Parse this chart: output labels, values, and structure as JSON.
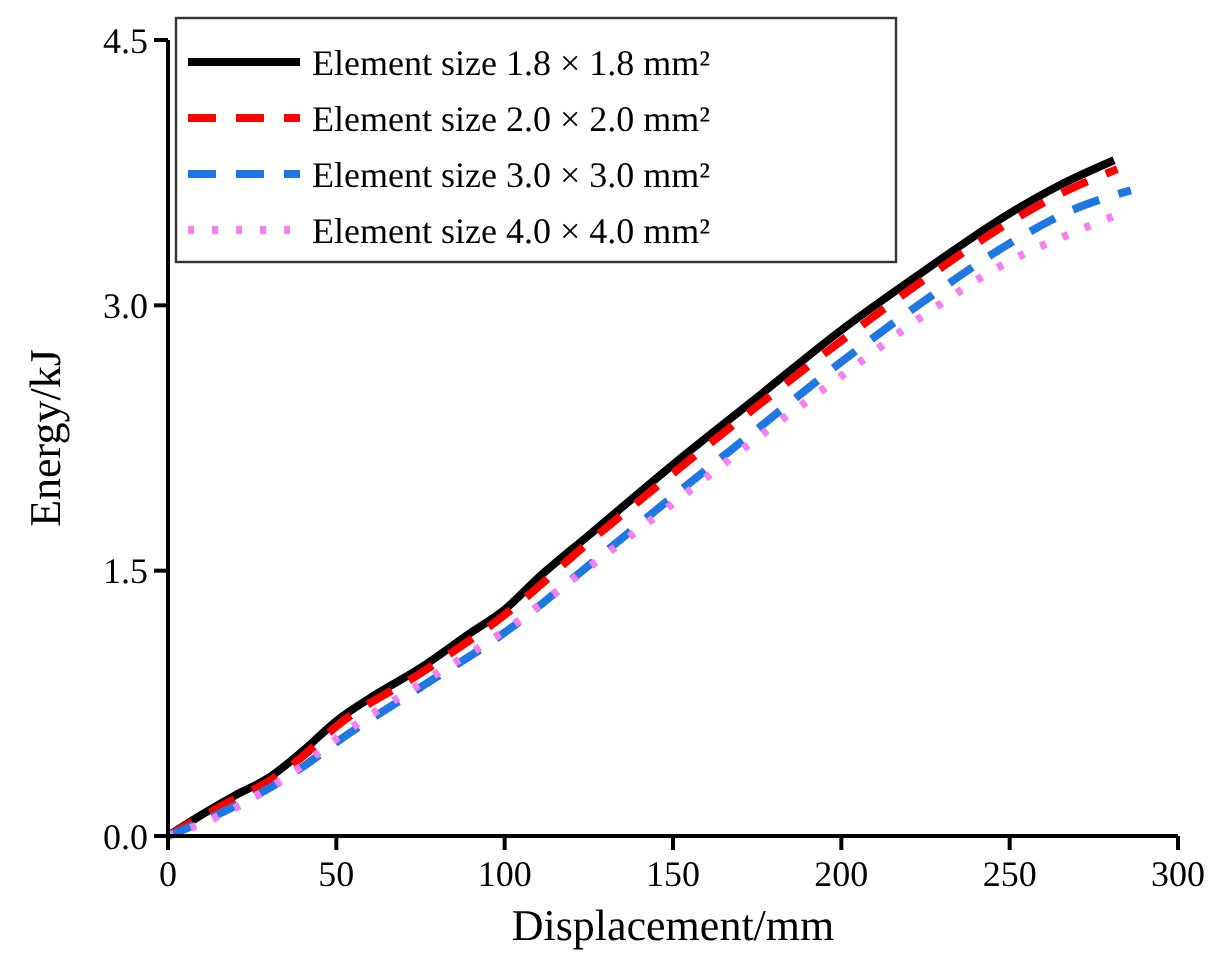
{
  "chart_data": {
    "type": "line",
    "xlabel": "Displacement/mm",
    "ylabel": "Energy/kJ",
    "xlim": [
      0,
      300
    ],
    "xticks": [
      0,
      50,
      100,
      150,
      200,
      250,
      300
    ],
    "ylim": [
      0,
      4.5
    ],
    "yticks": [
      {
        "value": 0,
        "label": "0.0"
      },
      {
        "value": 1.5,
        "label": "1.5"
      },
      {
        "value": 3,
        "label": "3.0"
      },
      {
        "value": 4.5,
        "label": "4.5"
      }
    ],
    "legend": "top left",
    "grid": false,
    "marker": "none",
    "series": [
      {
        "name": "Element size 1.8 × 1.8 mm²",
        "color": "#000000",
        "line_style": "solid",
        "x": [
          0,
          10,
          20,
          30,
          40,
          50,
          60,
          75,
          90,
          100,
          110,
          125,
          150,
          175,
          200,
          225,
          250,
          265,
          281
        ],
        "values": [
          0,
          0.12,
          0.23,
          0.33,
          0.48,
          0.65,
          0.78,
          0.95,
          1.15,
          1.28,
          1.46,
          1.7,
          2.1,
          2.48,
          2.86,
          3.2,
          3.52,
          3.68,
          3.82
        ]
      },
      {
        "name": "Element size 2.0 × 2.0 mm²",
        "color": "#ff0000",
        "line_style": "dashed",
        "x": [
          0,
          10,
          20,
          30,
          40,
          50,
          75,
          100,
          125,
          150,
          175,
          200,
          225,
          250,
          265,
          282
        ],
        "values": [
          0,
          0.11,
          0.21,
          0.31,
          0.45,
          0.62,
          0.92,
          1.25,
          1.66,
          2.05,
          2.43,
          2.8,
          3.15,
          3.47,
          3.63,
          3.77
        ]
      },
      {
        "name": "Element size 3.0 × 3.0 mm²",
        "color": "#1f77e4",
        "line_style": "dashed",
        "x": [
          0,
          10,
          20,
          30,
          40,
          50,
          75,
          100,
          125,
          150,
          175,
          200,
          225,
          250,
          270,
          286
        ],
        "values": [
          0,
          0.08,
          0.17,
          0.27,
          0.39,
          0.53,
          0.84,
          1.15,
          1.53,
          1.92,
          2.3,
          2.68,
          3.03,
          3.35,
          3.55,
          3.65
        ]
      },
      {
        "name": "Element size 4.0 × 4.0 mm²",
        "color": "#f57ff0",
        "line_style": "dotted",
        "x": [
          0,
          10,
          20,
          30,
          40,
          50,
          75,
          100,
          125,
          150,
          175,
          200,
          225,
          250,
          270,
          283
        ],
        "values": [
          0,
          0.07,
          0.16,
          0.27,
          0.4,
          0.55,
          0.86,
          1.16,
          1.52,
          1.88,
          2.25,
          2.6,
          2.95,
          3.25,
          3.42,
          3.52
        ]
      }
    ]
  }
}
